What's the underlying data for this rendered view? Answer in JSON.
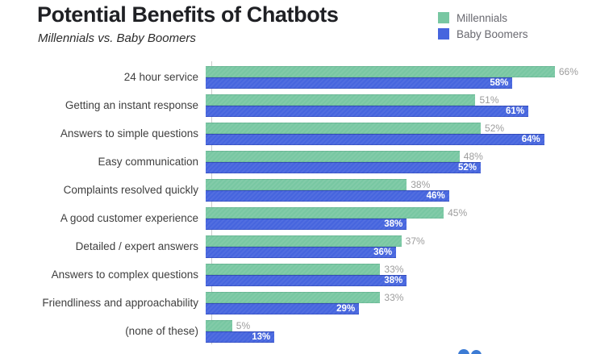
{
  "header": {
    "title": "Potential Benefits of Chatbots",
    "subtitle": "Millennials vs. Baby Boomers"
  },
  "legend": {
    "items": [
      {
        "label": "Millennials",
        "color": "#78c7a2"
      },
      {
        "label": "Baby Boomers",
        "color": "#4665de"
      }
    ]
  },
  "chart_data": {
    "type": "bar",
    "orientation": "horizontal",
    "title": "Potential Benefits of Chatbots",
    "subtitle": "Millennials vs. Baby Boomers",
    "categories": [
      "24 hour service",
      "Getting an instant response",
      "Answers to simple questions",
      "Easy communication",
      "Complaints resolved quickly",
      "A good customer experience",
      "Detailed / expert answers",
      "Answers to complex questions",
      "Friendliness and approachability",
      "(none of these)"
    ],
    "series": [
      {
        "name": "Millennials",
        "color": "#78c7a2",
        "values": [
          66,
          51,
          52,
          48,
          38,
          45,
          37,
          33,
          33,
          5
        ]
      },
      {
        "name": "Baby Boomers",
        "color": "#4665de",
        "values": [
          58,
          61,
          64,
          52,
          46,
          38,
          36,
          38,
          29,
          13
        ]
      }
    ],
    "value_suffix": "%",
    "value_labels": "millennials outside gray, boomers inside white bold",
    "xlim": [
      0,
      77
    ],
    "grid": false,
    "legend_position": "top-right",
    "axis_line_color": "#cbcbcb"
  },
  "colors": {
    "title": "#1f2024",
    "category_label": "#3f3f3f",
    "outside_value_label": "#9c9c9c",
    "inside_value_label": "#ffffff",
    "watermark_blue": "#3c7bd4"
  }
}
